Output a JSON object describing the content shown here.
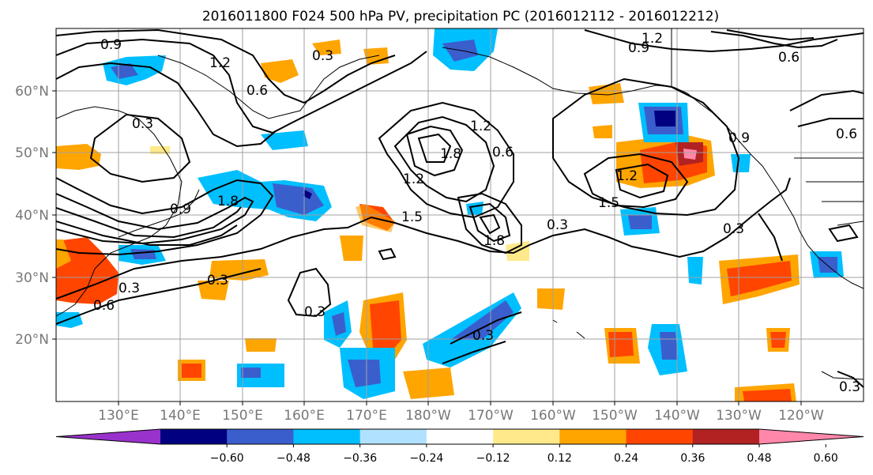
{
  "title": "2016011800 F024 500 hPa PV, precipitation PC (2016012112 - 2016012212)",
  "lat_labels": [
    "60°N",
    "50°N",
    "40°N",
    "30°N",
    "20°N"
  ],
  "lon_labels": [
    "130°E",
    "140°E",
    "150°E",
    "160°E",
    "170°E",
    "180°W",
    "170°W",
    "160°W",
    "150°W",
    "140°W",
    "130°W",
    "120°W"
  ],
  "contour_labels": [
    "0.9",
    "0.9",
    "1.2",
    "0.3",
    "0.6",
    "1.2",
    "0.3",
    "0.6",
    "0.3",
    "0.9",
    "1.8",
    "1.2",
    "1.8",
    "1.2",
    "0.6",
    "1.5",
    "1.8",
    "0.3",
    "1.2",
    "1.5",
    "0.9",
    "0.3",
    "0.6",
    "0.3",
    "0.3",
    "0.3",
    "0.6",
    "0.3"
  ],
  "colorbar": {
    "ticks": [
      "−0.60",
      "−0.48",
      "−0.36",
      "−0.24",
      "−0.12",
      "0.12",
      "0.24",
      "0.36",
      "0.48",
      "0.60"
    ],
    "colors": [
      "#9932cc",
      "#000080",
      "#3a5fcd",
      "#00bfff",
      "#b0e2ff",
      "#ffffff",
      "#ffe98a",
      "#ffa500",
      "#ff4500",
      "#b22222",
      "#ff88aa"
    ]
  }
}
